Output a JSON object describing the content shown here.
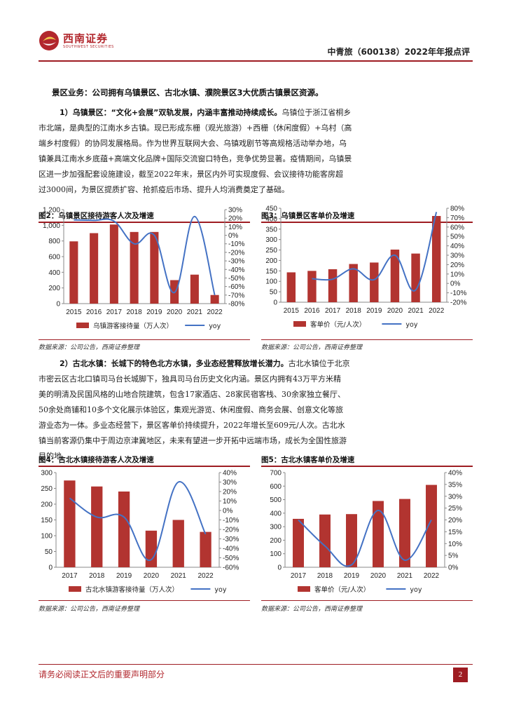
{
  "header": {
    "logo_cn": "西南证券",
    "logo_en": "SOUTHWEST SECURITIES",
    "report_title": "中青旅（600138）2022年年报点评"
  },
  "section_heading": "景区业务：公司拥有乌镇景区、古北水镇、濮院景区3大优质古镇景区资源。",
  "para1": {
    "lead": "1）乌镇景区：“文化+会展”双轨发展，内涵丰富推动持续成长。",
    "lines": [
      "乌镇位于浙江省桐乡",
      "市北端，是典型的江南水乡古镇。现已形成东栅（观光旅游）+西栅（休闲度假）+乌村（高",
      "端乡村度假）的协同发展格局。作为世界互联网大会、乌镇戏剧节等高规格活动举办地，乌",
      "镇兼具江南水乡底蕴+高端文化品牌+国际交流窗口特色，竞争优势显著。疫情期间，乌镇景",
      "区进一步加强配套设施建设，截至2022年末，景区内外可实现度假、会议接待功能客房超",
      "过3000间，为景区提质扩容、抢抓疫后市场、提升人均消费奠定了基础。"
    ]
  },
  "para2": {
    "lead": "2）古北水镇：长城下的特色北方水镇，多业态经营释放增长潜力。",
    "lines": [
      "古北水镇位于北京",
      "市密云区古北口镇司马台长城脚下，独具司马台历史文化内涵。景区内拥有43万平方米精",
      "美的明清及民国风格的山地合院建筑，包含17家酒店、28家民宿客栈、30余家独立餐厅、",
      "50余处商铺和10多个文化展示体验区，集观光游览、休闲度假、商务会展、创意文化等旅",
      "游业态为一体。多业态经营下，景区客单价持续提升，2022年增长至609元/人次。古北水",
      "镇当前客源仍集中于周边京津冀地区，未来有望进一步开拓中远端市场，成长为全国性旅游",
      "目的地。"
    ]
  },
  "figures": {
    "fig2_title": "图2：乌镇景区接待游客人次及增速",
    "fig3_title": "图3：乌镇景区客单价及增速",
    "fig4_title": "图4：古北水镇接待游客人次及增速",
    "fig5_title": "图5：古北水镇客单价及增速",
    "source": "数据来源：公司公告，西南证券整理"
  },
  "chart_data": [
    {
      "id": "fig2",
      "type": "bar",
      "categories": [
        "2015",
        "2016",
        "2017",
        "2018",
        "2019",
        "2020",
        "2021",
        "2022"
      ],
      "series": [
        {
          "name": "乌镇游客接待量（万人次）",
          "kind": "bar",
          "axis": "left",
          "values": [
            795,
            900,
            1010,
            915,
            915,
            300,
            370,
            110
          ]
        },
        {
          "name": "yoy",
          "kind": "line",
          "axis": "right",
          "values": [
            0.18,
            0.175,
            0.165,
            -0.1,
            0.0,
            -0.67,
            0.22,
            -0.7
          ]
        }
      ],
      "ylim": [
        0,
        1200
      ],
      "yticks": [
        "0",
        "200",
        "400",
        "600",
        "800",
        "1,000",
        "1,200"
      ],
      "y2lim": [
        -0.8,
        0.3
      ],
      "y2ticks": [
        "-80%",
        "-70%",
        "-60%",
        "-50%",
        "-40%",
        "-30%",
        "-20%",
        "-10%",
        "0%",
        "10%",
        "20%",
        "30%"
      ],
      "colors": {
        "bar": "#b23430",
        "line": "#4472c4"
      },
      "legend": "bottom"
    },
    {
      "id": "fig3",
      "type": "bar",
      "categories": [
        "2015",
        "2016",
        "2017",
        "2018",
        "2019",
        "2020",
        "2021",
        "2022"
      ],
      "series": [
        {
          "name": "客单价（元/人次）",
          "kind": "bar",
          "axis": "left",
          "values": [
            143,
            150,
            158,
            183,
            190,
            252,
            233,
            413
          ]
        },
        {
          "name": "yoy",
          "kind": "line",
          "axis": "right",
          "values": [
            null,
            0.05,
            0.045,
            0.155,
            0.04,
            0.3,
            -0.07,
            0.76
          ]
        }
      ],
      "ylim": [
        0,
        450
      ],
      "yticks": [
        "0",
        "50",
        "100",
        "150",
        "200",
        "250",
        "300",
        "350",
        "400",
        "450"
      ],
      "y2lim": [
        -0.2,
        0.8
      ],
      "y2ticks": [
        "-20%",
        "-10%",
        "0%",
        "10%",
        "20%",
        "30%",
        "40%",
        "50%",
        "60%",
        "70%",
        "80%"
      ],
      "colors": {
        "bar": "#b23430",
        "line": "#4472c4"
      },
      "legend": "bottom"
    },
    {
      "id": "fig4",
      "type": "bar",
      "categories": [
        "2017",
        "2018",
        "2019",
        "2020",
        "2021",
        "2022"
      ],
      "series": [
        {
          "name": "古北水镇游客接待量（万人次）",
          "kind": "bar",
          "axis": "left",
          "values": [
            275,
            256,
            240,
            116,
            150,
            112
          ]
        },
        {
          "name": "yoy",
          "kind": "line",
          "axis": "right",
          "values": [
            0.13,
            -0.07,
            -0.07,
            -0.52,
            0.3,
            -0.25
          ]
        }
      ],
      "ylim": [
        0,
        300
      ],
      "yticks": [
        "0",
        "50",
        "100",
        "150",
        "200",
        "250",
        "300"
      ],
      "y2lim": [
        -0.6,
        0.4
      ],
      "y2ticks": [
        "-60%",
        "-50%",
        "-40%",
        "-30%",
        "-20%",
        "-10%",
        "0%",
        "10%",
        "20%",
        "30%",
        "40%"
      ],
      "colors": {
        "bar": "#b23430",
        "line": "#4472c4"
      },
      "legend": "bottom"
    },
    {
      "id": "fig5",
      "type": "bar",
      "categories": [
        "2017",
        "2018",
        "2019",
        "2020",
        "2021",
        "2022"
      ],
      "series": [
        {
          "name": "客单价（元/人次）",
          "kind": "bar",
          "axis": "left",
          "values": [
            358,
            390,
            393,
            490,
            505,
            609
          ]
        },
        {
          "name": "yoy",
          "kind": "line",
          "axis": "right",
          "values": [
            0.2,
            0.09,
            0.01,
            0.24,
            0.03,
            0.2
          ]
        }
      ],
      "ylim": [
        0,
        700
      ],
      "yticks": [
        "0",
        "100",
        "200",
        "300",
        "400",
        "500",
        "600",
        "700"
      ],
      "y2lim": [
        0,
        0.4
      ],
      "y2ticks": [
        "0%",
        "5%",
        "10%",
        "15%",
        "20%",
        "25%",
        "30%",
        "35%",
        "40%"
      ],
      "colors": {
        "bar": "#b23430",
        "line": "#4472c4"
      },
      "legend": "bottom"
    }
  ],
  "footer": {
    "note": "请务必阅读正文后的重要声明部分",
    "page": "2"
  }
}
